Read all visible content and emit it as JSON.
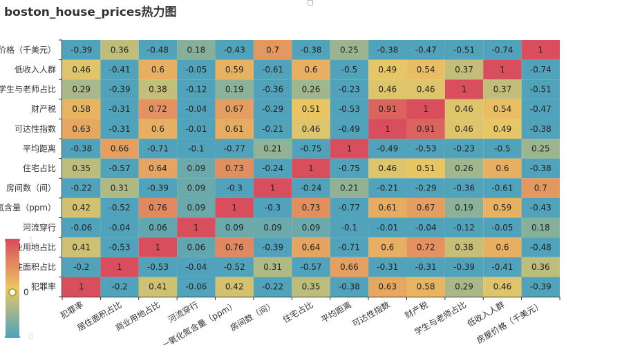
{
  "chart_data": {
    "type": "heatmap",
    "title": "boston_house_prices热力图",
    "x_categories": [
      "犯罪率",
      "居住面积占比",
      "商业用地占比",
      "河流穿行",
      "一氧化氮含量（ppm）",
      "房间数（间）",
      "住宅占比",
      "平均距离",
      "可达性指数",
      "财产税",
      "学生与老师占比",
      "低收入人群",
      "房屋价格（千美元）"
    ],
    "y_categories": [
      "房屋价格（千美元）",
      "低收入人群",
      "学生与老师占比",
      "财产税",
      "可达性指数",
      "平均距离",
      "住宅占比",
      "房间数（间）",
      "一氧化氮含量（ppm）",
      "河流穿行",
      "商业用地占比",
      "居住面积占比",
      "犯罪率"
    ],
    "values": [
      [
        -0.39,
        0.36,
        -0.48,
        0.18,
        -0.43,
        0.7,
        -0.38,
        0.25,
        -0.38,
        -0.47,
        -0.51,
        -0.74,
        1
      ],
      [
        0.46,
        -0.41,
        0.6,
        -0.05,
        0.59,
        -0.61,
        0.6,
        -0.5,
        0.49,
        0.54,
        0.37,
        1,
        -0.74
      ],
      [
        0.29,
        -0.39,
        0.38,
        -0.12,
        0.19,
        -0.36,
        0.26,
        -0.23,
        0.46,
        0.46,
        1,
        0.37,
        -0.51
      ],
      [
        0.58,
        -0.31,
        0.72,
        -0.04,
        0.67,
        -0.29,
        0.51,
        -0.53,
        0.91,
        1,
        0.46,
        0.54,
        -0.47
      ],
      [
        0.63,
        -0.31,
        0.6,
        -0.01,
        0.61,
        -0.21,
        0.46,
        -0.49,
        1,
        0.91,
        0.46,
        0.49,
        -0.38
      ],
      [
        -0.38,
        0.66,
        -0.71,
        -0.1,
        -0.77,
        0.21,
        -0.75,
        1,
        -0.49,
        -0.53,
        -0.23,
        -0.5,
        0.25
      ],
      [
        0.35,
        -0.57,
        0.64,
        0.09,
        0.73,
        -0.24,
        1,
        -0.75,
        0.46,
        0.51,
        0.26,
        0.6,
        -0.38
      ],
      [
        -0.22,
        0.31,
        -0.39,
        0.09,
        -0.3,
        1,
        -0.24,
        0.21,
        -0.21,
        -0.29,
        -0.36,
        -0.61,
        0.7
      ],
      [
        0.42,
        -0.52,
        0.76,
        0.09,
        1,
        -0.3,
        0.73,
        -0.77,
        0.61,
        0.67,
        0.19,
        0.59,
        -0.43
      ],
      [
        -0.06,
        -0.04,
        0.06,
        1,
        0.09,
        0.09,
        0.09,
        -0.1,
        -0.01,
        -0.04,
        -0.12,
        -0.05,
        0.18
      ],
      [
        0.41,
        -0.53,
        1,
        0.06,
        0.76,
        -0.39,
        0.64,
        -0.71,
        0.6,
        0.72,
        0.38,
        0.6,
        -0.48
      ],
      [
        -0.2,
        1,
        -0.53,
        -0.04,
        -0.52,
        0.31,
        -0.57,
        0.66,
        -0.31,
        -0.31,
        -0.39,
        -0.41,
        0.36
      ],
      [
        1,
        -0.2,
        0.41,
        -0.06,
        0.42,
        -0.22,
        0.35,
        -0.38,
        0.63,
        0.58,
        0.29,
        0.46,
        -0.39
      ]
    ],
    "visual_map": {
      "min": 0,
      "max": 1,
      "current": "0",
      "min_label": "0",
      "max_label": "1",
      "colors": [
        "#50a3ba",
        "#eac763",
        "#d94e5d"
      ]
    },
    "grid": false,
    "legend": "bottom-left"
  }
}
